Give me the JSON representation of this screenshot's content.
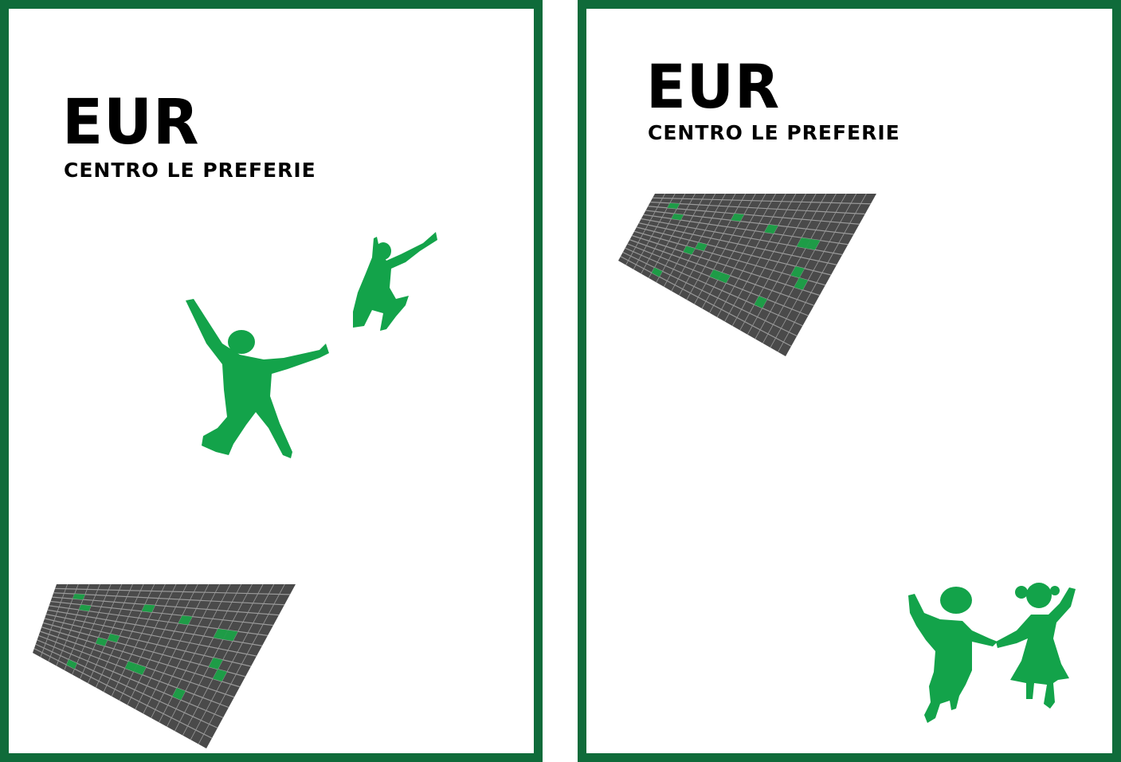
{
  "posters": [
    {
      "title": "EUR",
      "subtitle": "CENTRO LE PREFERIE"
    },
    {
      "title": "EUR",
      "subtitle": "CENTRO LE PREFERIE"
    }
  ],
  "colors": {
    "frame": "#0f6b3a",
    "figure": "#13a34a",
    "building_face": "#4a4a4a",
    "window_highlight": "#1e9c47"
  },
  "icons": [
    "jumping-person-icon",
    "building-facade-icon",
    "children-holding-hands-icon"
  ]
}
